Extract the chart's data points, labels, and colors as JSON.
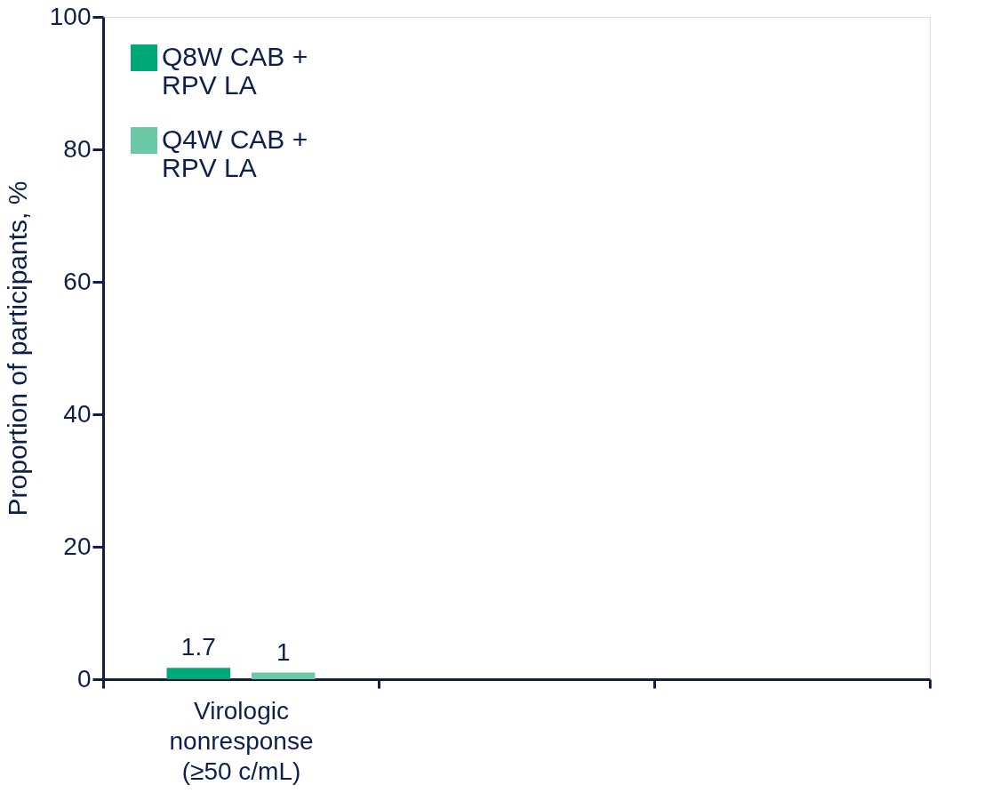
{
  "chart_data": {
    "type": "bar",
    "ylabel": "Proportion of participants, %",
    "categories": [
      "Virologic nonresponse (≥50 c/mL)",
      null,
      null
    ],
    "series": [
      {
        "name": "Q8W CAB + RPV LA",
        "color": "#00a878",
        "values": [
          1.7,
          null,
          null
        ]
      },
      {
        "name": "Q4W CAB + RPV LA",
        "color": "#6cc9a8",
        "values": [
          1,
          null,
          null
        ]
      }
    ],
    "ylim": [
      0,
      100
    ],
    "yticks": [
      0,
      20,
      40,
      60,
      80,
      100
    ],
    "data_labels": true,
    "legend": "top left",
    "grid": false
  }
}
